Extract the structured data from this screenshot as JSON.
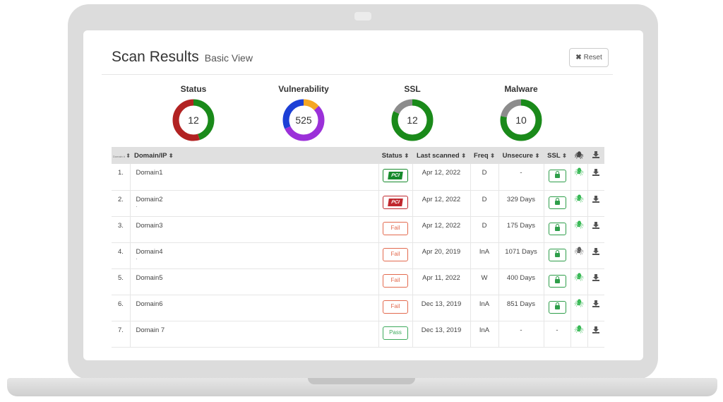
{
  "header": {
    "title": "Scan Results",
    "subtitle": "Basic View",
    "reset_label": "Reset",
    "reset_icon": "✖"
  },
  "summary": [
    {
      "label": "Status",
      "value": "12",
      "segments": [
        {
          "color": "#1a8a1a",
          "fraction": 0.45
        },
        {
          "color": "#b22222",
          "fraction": 0.55
        }
      ]
    },
    {
      "label": "Vulnerability",
      "value": "525",
      "segments": [
        {
          "color": "#f5a623",
          "fraction": 0.13
        },
        {
          "color": "#9b30d9",
          "fraction": 0.55
        },
        {
          "color": "#1c3fd6",
          "fraction": 0.32
        }
      ]
    },
    {
      "label": "SSL",
      "value": "12",
      "segments": [
        {
          "color": "#1a8a1a",
          "fraction": 0.82
        },
        {
          "color": "#8c8c8c",
          "fraction": 0.18
        }
      ]
    },
    {
      "label": "Malware",
      "value": "10",
      "segments": [
        {
          "color": "#1a8a1a",
          "fraction": 0.78
        },
        {
          "color": "#8c8c8c",
          "fraction": 0.22
        }
      ]
    }
  ],
  "table": {
    "columns": {
      "num": "Domain #",
      "domain": "Domain/IP",
      "status": "Status",
      "last_scanned": "Last scanned",
      "freq": "Freq",
      "unsecure": "Unsecure",
      "ssl": "SSL"
    },
    "sort_icon": "⬍",
    "rows": [
      {
        "num": "1.",
        "domain": "Domain1",
        "dot": "",
        "status_type": "pci-green",
        "status": "PCI",
        "last_scanned": "Apr 12, 2022",
        "freq": "D",
        "unsecure": "-",
        "ssl": "lock",
        "malware": "green"
      },
      {
        "num": "2.",
        "domain": "Domain2",
        "dot": ".",
        "status_type": "pci-red",
        "status": "PCI",
        "last_scanned": "Apr 12, 2022",
        "freq": "D",
        "unsecure": "329 Days",
        "ssl": "lock",
        "malware": "green"
      },
      {
        "num": "3.",
        "domain": "Domain3",
        "dot": "",
        "status_type": "fail",
        "status": "Fail",
        "last_scanned": "Apr 12, 2022",
        "freq": "D",
        "unsecure": "175 Days",
        "ssl": "lock",
        "malware": "green"
      },
      {
        "num": "4.",
        "domain": "Domain4",
        "dot": ".",
        "status_type": "fail",
        "status": "Fail",
        "last_scanned": "Apr 20, 2019",
        "freq": "InA",
        "unsecure": "1071 Days",
        "ssl": "lock",
        "malware": "dark"
      },
      {
        "num": "5.",
        "domain": "Domain5",
        "dot": "",
        "status_type": "fail",
        "status": "Fail",
        "last_scanned": "Apr 11, 2022",
        "freq": "W",
        "unsecure": "400 Days",
        "ssl": "lock",
        "malware": "green"
      },
      {
        "num": "6.",
        "domain": "Domain6",
        "dot": "",
        "status_type": "fail",
        "status": "Fail",
        "last_scanned": "Dec 13, 2019",
        "freq": "InA",
        "unsecure": "851 Days",
        "ssl": "lock",
        "malware": "green"
      },
      {
        "num": "7.",
        "domain": "Domain 7",
        "dot": "",
        "status_type": "pass",
        "status": "Pass",
        "last_scanned": "Dec 13, 2019",
        "freq": "InA",
        "unsecure": "-",
        "ssl": "-",
        "malware": "green"
      }
    ]
  }
}
